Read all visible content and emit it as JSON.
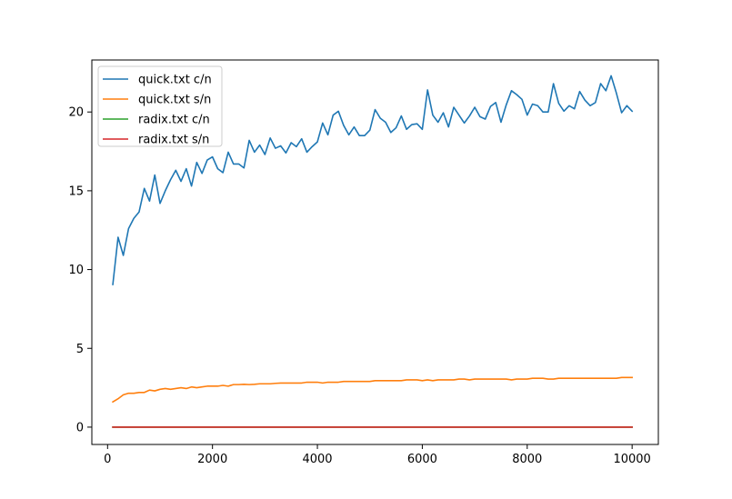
{
  "chart_data": {
    "type": "line",
    "title": "",
    "xlabel": "",
    "ylabel": "",
    "xlim": [
      -300,
      10500
    ],
    "ylim": [
      -1.1,
      23.3
    ],
    "xticks": [
      0,
      2000,
      4000,
      6000,
      8000,
      10000
    ],
    "yticks": [
      0,
      5,
      10,
      15,
      20
    ],
    "grid": false,
    "legend_position": "upper-left",
    "x": [
      100,
      200,
      300,
      400,
      500,
      600,
      700,
      800,
      900,
      1000,
      1100,
      1200,
      1300,
      1400,
      1500,
      1600,
      1700,
      1800,
      1900,
      2000,
      2100,
      2200,
      2300,
      2400,
      2500,
      2600,
      2700,
      2800,
      2900,
      3000,
      3100,
      3200,
      3300,
      3400,
      3500,
      3600,
      3700,
      3800,
      3900,
      4000,
      4100,
      4200,
      4300,
      4400,
      4500,
      4600,
      4700,
      4800,
      4900,
      5000,
      5100,
      5200,
      5300,
      5400,
      5500,
      5600,
      5700,
      5800,
      5900,
      6000,
      6100,
      6200,
      6300,
      6400,
      6500,
      6600,
      6700,
      6800,
      6900,
      7000,
      7100,
      7200,
      7300,
      7400,
      7500,
      7600,
      7700,
      7800,
      7900,
      8000,
      8100,
      8200,
      8300,
      8400,
      8500,
      8600,
      8700,
      8800,
      8900,
      9000,
      9100,
      9200,
      9300,
      9400,
      9500,
      9600,
      9700,
      9800,
      9900,
      10000
    ],
    "series": [
      {
        "name": "quick.txt c/n",
        "color": "#1f77b4",
        "values": [
          9.05,
          12.05,
          10.9,
          12.6,
          13.25,
          13.65,
          15.15,
          14.35,
          16.0,
          14.2,
          15.0,
          15.7,
          16.3,
          15.6,
          16.4,
          15.3,
          16.8,
          16.1,
          16.95,
          17.15,
          16.4,
          16.15,
          17.45,
          16.7,
          16.7,
          16.45,
          18.2,
          17.45,
          17.9,
          17.3,
          18.35,
          17.7,
          17.85,
          17.4,
          18.05,
          17.8,
          18.3,
          17.45,
          17.8,
          18.1,
          19.3,
          18.55,
          19.8,
          20.05,
          19.15,
          18.55,
          19.05,
          18.5,
          18.5,
          18.85,
          20.15,
          19.6,
          19.35,
          18.7,
          19.0,
          19.75,
          18.9,
          19.2,
          19.25,
          18.9,
          21.4,
          19.8,
          19.35,
          19.95,
          19.05,
          20.3,
          19.8,
          19.3,
          19.75,
          20.3,
          19.7,
          19.55,
          20.35,
          20.6,
          19.35,
          20.45,
          21.35,
          21.1,
          20.8,
          19.8,
          20.5,
          20.4,
          20.0,
          20.0,
          21.8,
          20.55,
          20.05,
          20.4,
          20.2,
          21.3,
          20.75,
          20.4,
          20.6,
          21.8,
          21.35,
          22.3,
          21.2,
          19.95,
          20.4,
          20.05
        ]
      },
      {
        "name": "quick.txt s/n",
        "color": "#ff7f0e",
        "values": [
          1.6,
          1.8,
          2.05,
          2.15,
          2.15,
          2.2,
          2.2,
          2.35,
          2.3,
          2.4,
          2.45,
          2.4,
          2.45,
          2.5,
          2.45,
          2.55,
          2.5,
          2.55,
          2.6,
          2.6,
          2.6,
          2.65,
          2.6,
          2.7,
          2.7,
          2.72,
          2.7,
          2.72,
          2.75,
          2.75,
          2.75,
          2.78,
          2.8,
          2.8,
          2.8,
          2.8,
          2.8,
          2.85,
          2.85,
          2.85,
          2.8,
          2.85,
          2.85,
          2.85,
          2.9,
          2.9,
          2.9,
          2.9,
          2.9,
          2.9,
          2.95,
          2.95,
          2.95,
          2.95,
          2.95,
          2.95,
          3.0,
          3.0,
          3.0,
          2.95,
          3.0,
          2.95,
          3.0,
          3.0,
          3.0,
          3.0,
          3.05,
          3.05,
          3.0,
          3.05,
          3.05,
          3.05,
          3.05,
          3.05,
          3.05,
          3.05,
          3.0,
          3.05,
          3.05,
          3.05,
          3.1,
          3.1,
          3.1,
          3.05,
          3.05,
          3.1,
          3.1,
          3.1,
          3.1,
          3.1,
          3.1,
          3.1,
          3.1,
          3.1,
          3.1,
          3.1,
          3.1,
          3.15,
          3.15,
          3.15
        ]
      },
      {
        "name": "radix.txt c/n",
        "color": "#2ca02c",
        "values": [
          0,
          0,
          0,
          0,
          0,
          0,
          0,
          0,
          0,
          0,
          0,
          0,
          0,
          0,
          0,
          0,
          0,
          0,
          0,
          0,
          0,
          0,
          0,
          0,
          0,
          0,
          0,
          0,
          0,
          0,
          0,
          0,
          0,
          0,
          0,
          0,
          0,
          0,
          0,
          0,
          0,
          0,
          0,
          0,
          0,
          0,
          0,
          0,
          0,
          0,
          0,
          0,
          0,
          0,
          0,
          0,
          0,
          0,
          0,
          0,
          0,
          0,
          0,
          0,
          0,
          0,
          0,
          0,
          0,
          0,
          0,
          0,
          0,
          0,
          0,
          0,
          0,
          0,
          0,
          0,
          0,
          0,
          0,
          0,
          0,
          0,
          0,
          0,
          0,
          0,
          0,
          0,
          0,
          0,
          0,
          0,
          0,
          0,
          0,
          0
        ]
      },
      {
        "name": "radix.txt s/n",
        "color": "#d62728",
        "values": [
          0,
          0,
          0,
          0,
          0,
          0,
          0,
          0,
          0,
          0,
          0,
          0,
          0,
          0,
          0,
          0,
          0,
          0,
          0,
          0,
          0,
          0,
          0,
          0,
          0,
          0,
          0,
          0,
          0,
          0,
          0,
          0,
          0,
          0,
          0,
          0,
          0,
          0,
          0,
          0,
          0,
          0,
          0,
          0,
          0,
          0,
          0,
          0,
          0,
          0,
          0,
          0,
          0,
          0,
          0,
          0,
          0,
          0,
          0,
          0,
          0,
          0,
          0,
          0,
          0,
          0,
          0,
          0,
          0,
          0,
          0,
          0,
          0,
          0,
          0,
          0,
          0,
          0,
          0,
          0,
          0,
          0,
          0,
          0,
          0,
          0,
          0,
          0,
          0,
          0,
          0,
          0,
          0,
          0,
          0,
          0,
          0,
          0,
          0,
          0
        ]
      }
    ]
  }
}
